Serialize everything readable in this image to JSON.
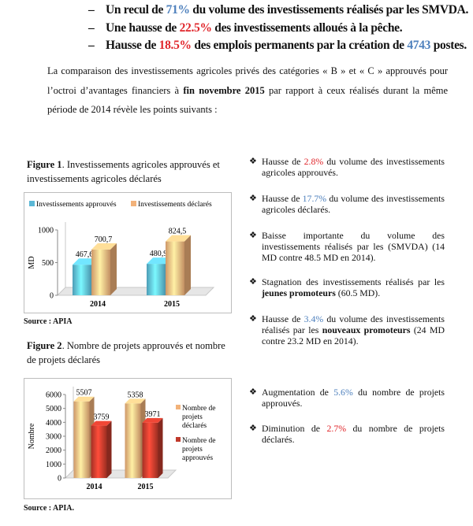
{
  "top_bullets": [
    {
      "pre": "Un recul de ",
      "val": "71%",
      "post": " du volume des investissements réalisés par les SMVDA.",
      "color": "#4f81bd"
    },
    {
      "pre": "Une hausse de ",
      "val": "22.5%",
      "post": " des investissements alloués à la pêche.",
      "color": "#e0262b"
    },
    {
      "pre": "Hausse de ",
      "val": "18.5%",
      "post": " des emplois permanents par la création de ",
      "val2": "4743",
      "post2": " postes.",
      "color": "#e0262b"
    }
  ],
  "intro": {
    "part1": "La comparaison des investissements agricoles privés des catégories « B » et « C » approuvés pour l’octroi d’avantages financiers à ",
    "bold": "fin novembre 2015",
    "part2": " par rapport à ceux réalisés durant la même période de 2014 révèle  les points suivants :"
  },
  "figure1": {
    "label": "Figure 1",
    "caption": ". Investissements agricoles approuvés et investissements agricoles déclarés",
    "source": "Source : APIA"
  },
  "figure2": {
    "label": "Figure 2",
    "caption": ". Nombre de projets approuvés et nombre de projets déclarés",
    "source": "Source : APIA."
  },
  "chart_data": [
    {
      "type": "bar",
      "categories": [
        "2014",
        "2015"
      ],
      "series": [
        {
          "name": "Investissements approuvés",
          "values": [
            467.6,
            480.9
          ],
          "color": "#5bb8d6"
        },
        {
          "name": "Investissements déclarés",
          "values": [
            700.7,
            824.5
          ],
          "color": "#f2b27a"
        }
      ],
      "data_labels": {
        "Investissements approuvés": [
          "467,6",
          "480,9"
        ],
        "Investissements déclarés": [
          "700,7",
          "824,5"
        ]
      },
      "xlabel": "",
      "ylabel": "MD",
      "ylim": [
        0,
        1000
      ],
      "yticks": [
        "0",
        "500",
        "1000"
      ],
      "legend": "top",
      "grid": false
    },
    {
      "type": "bar",
      "categories": [
        "2014",
        "2015"
      ],
      "series": [
        {
          "name": "Nombre de projets déclarés",
          "values": [
            5507,
            5358
          ],
          "color": "#f2b27a"
        },
        {
          "name": "Nombre de projets approuvés",
          "values": [
            3759,
            3971
          ],
          "color": "#c0392b"
        }
      ],
      "data_labels": {
        "Nombre de projets déclarés": [
          "5507",
          "5358"
        ],
        "Nombre de projets approuvés": [
          "3759",
          "3971"
        ]
      },
      "xlabel": "",
      "ylabel": "Nombre",
      "ylim": [
        0,
        6000
      ],
      "yticks": [
        "0",
        "1000",
        "2000",
        "3000",
        "4000",
        "5000",
        "6000"
      ],
      "legend": "right",
      "legend_lines": [
        [
          "Nombre de",
          "projets",
          "déclarés"
        ],
        [
          "Nombre de",
          "projets",
          "approuvés"
        ]
      ],
      "grid": false
    }
  ],
  "right_items": [
    {
      "pre": "Hausse de ",
      "val": "2.8%",
      "color": "#e0262b",
      "post": " du volume des investissements agricoles approuvés."
    },
    {
      "pre": "Hausse de ",
      "val": "17.7%",
      "color": "#4f81bd",
      "post": " du volume des investissements agricoles déclarés."
    },
    {
      "pre": "Baisse importante du volume des investissements réalisés par les (SMVDA) (14 MD contre 48.5 MD en 2014).",
      "val": "",
      "color": "",
      "post": ""
    },
    {
      "pre": "Stagnation des investissements réalisés par les ",
      "bold": "jeunes promoteurs",
      "post": " (60.5 MD)."
    },
    {
      "pre": "Hausse de ",
      "val": "3.4%",
      "color": "#4f81bd",
      "post": " du volume des investissements réalisés par les ",
      "bold": "nouveaux promoteurs",
      "post2": " (24 MD contre 23.2 MD en 2014)."
    },
    {
      "pre": "Augmentation de ",
      "val": "5.6%",
      "color": "#4f81bd",
      "post": " du nombre de projets approuvés."
    },
    {
      "pre": "Diminution de ",
      "val": "2.7%",
      "color": "#e0262b",
      "post": " du nombre de projets déclarés."
    }
  ]
}
